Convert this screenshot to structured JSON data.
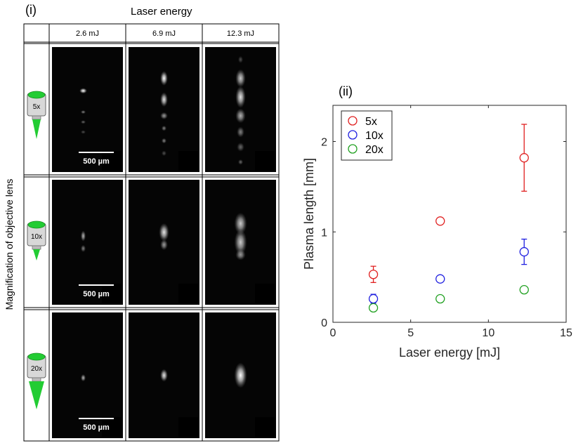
{
  "panel_i": {
    "label": "(i)",
    "column_header": "Laser energy",
    "row_header": "Magnification of objective lens",
    "columns": [
      "2.6 mJ",
      "6.9 mJ",
      "12.3 mJ"
    ],
    "rows": [
      "5x",
      "10x",
      "20x"
    ],
    "scale_bar_label": "500 µm",
    "objective_color": "#22cc33"
  },
  "chart_data": {
    "type": "scatter",
    "panel_label": "(ii)",
    "xlabel": "Laser energy [mJ]",
    "ylabel": "Plasma length [mm]",
    "xlim": [
      0,
      15
    ],
    "ylim": [
      0,
      2.4
    ],
    "xticks": [
      0,
      5,
      10,
      15
    ],
    "yticks": [
      0,
      1,
      2
    ],
    "grid": false,
    "legend_position": "top-left",
    "series": [
      {
        "name": "5x",
        "color": "#e02020",
        "x": [
          2.6,
          6.9,
          12.3
        ],
        "y": [
          0.53,
          1.12,
          1.82
        ],
        "err": [
          0.09,
          0.0,
          0.37
        ]
      },
      {
        "name": "10x",
        "color": "#2020e0",
        "x": [
          2.6,
          6.9,
          12.3
        ],
        "y": [
          0.26,
          0.48,
          0.78
        ],
        "err": [
          0.05,
          0.0,
          0.14
        ]
      },
      {
        "name": "20x",
        "color": "#20a020",
        "x": [
          2.6,
          6.9,
          12.3
        ],
        "y": [
          0.16,
          0.26,
          0.36
        ],
        "err": [
          0.0,
          0.0,
          0.0
        ]
      }
    ]
  }
}
